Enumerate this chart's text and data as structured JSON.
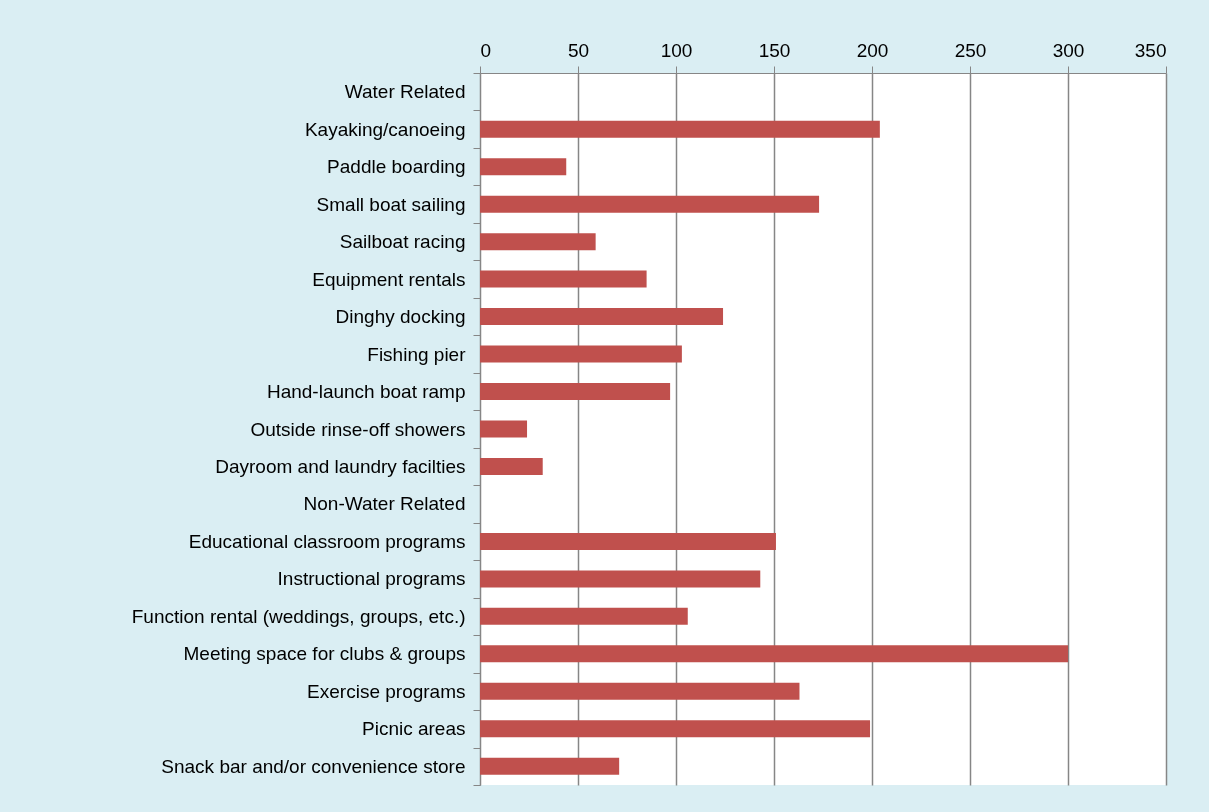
{
  "chart_data": {
    "type": "bar",
    "orientation": "horizontal",
    "categories": [
      "Water Related",
      "Kayaking/canoeing",
      "Paddle boarding",
      "Small boat sailing",
      "Sailboat racing",
      "Equipment rentals",
      "Dinghy docking",
      "Fishing pier",
      "Hand-launch boat ramp",
      "Outside rinse-off showers",
      "Dayroom and laundry facilties",
      "Non-Water Related",
      "Educational classroom programs",
      "Instructional programs",
      "Function rental (weddings, groups, etc.)",
      "Meeting space for clubs & groups",
      "Exercise programs",
      "Picnic areas",
      "Snack bar and/or convenience store"
    ],
    "values": [
      null,
      204,
      44,
      173,
      59,
      85,
      124,
      103,
      97,
      24,
      32,
      null,
      151,
      143,
      106,
      300,
      163,
      199,
      71
    ],
    "color": "#c0504d",
    "xlim": [
      0,
      350
    ],
    "xticks": [
      0,
      50,
      100,
      150,
      200,
      250,
      300,
      350
    ],
    "grid": "x"
  }
}
